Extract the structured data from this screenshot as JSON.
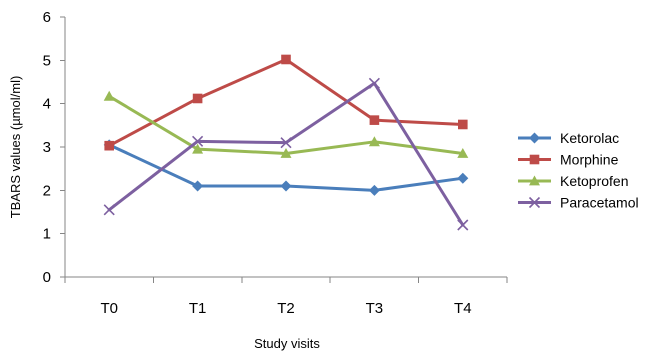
{
  "chart_data": {
    "type": "line",
    "title": "",
    "xlabel": "Study visits",
    "ylabel": "TBARS values (µmol/ml)",
    "categories": [
      "T0",
      "T1",
      "T2",
      "T3",
      "T4"
    ],
    "ylim": [
      0,
      6
    ],
    "yticks": [
      "0",
      "1",
      "2",
      "3",
      "4",
      "5",
      "6"
    ],
    "grid": false,
    "legend_position": "right",
    "series": [
      {
        "name": "Ketorolac",
        "color": "#4A7EBB",
        "marker": "diamond",
        "values": [
          3.05,
          2.1,
          2.1,
          2.0,
          2.28
        ]
      },
      {
        "name": "Morphine",
        "color": "#BE4B48",
        "marker": "square",
        "values": [
          3.03,
          4.12,
          5.02,
          3.62,
          3.52
        ]
      },
      {
        "name": "Ketoprofen",
        "color": "#98B954",
        "marker": "triangle",
        "values": [
          4.17,
          2.95,
          2.85,
          3.12,
          2.85
        ]
      },
      {
        "name": "Paracetamol",
        "color": "#7D60A0",
        "marker": "x",
        "values": [
          1.55,
          3.13,
          3.1,
          4.47,
          1.2
        ]
      }
    ]
  }
}
